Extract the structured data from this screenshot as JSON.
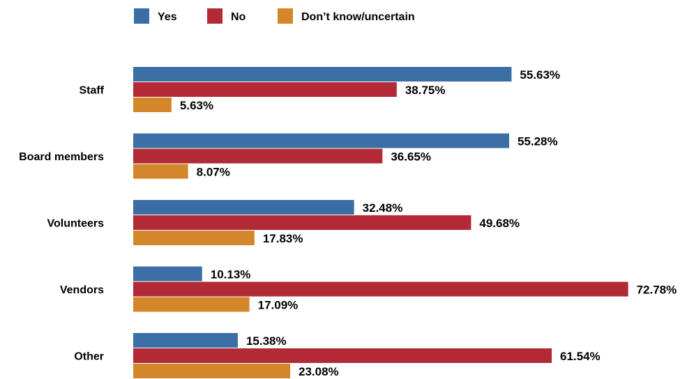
{
  "chart_data": {
    "type": "bar",
    "orientation": "horizontal",
    "categories": [
      "Staff",
      "Board members",
      "Volunteers",
      "Vendors",
      "Other"
    ],
    "series": [
      {
        "name": "Yes",
        "color": "#3a6ea5",
        "values": [
          55.63,
          55.28,
          32.48,
          10.13,
          15.38
        ]
      },
      {
        "name": "No",
        "color": "#b22a35",
        "values": [
          38.75,
          36.65,
          49.68,
          72.78,
          61.54
        ]
      },
      {
        "name": "Don’t know/uncertain",
        "color": "#d4872a",
        "values": [
          5.63,
          8.07,
          17.83,
          17.09,
          23.08
        ]
      }
    ],
    "data_labels": [
      [
        "55.63%",
        "38.75%",
        "5.63%"
      ],
      [
        "55.28%",
        "36.65%",
        "8.07%"
      ],
      [
        "32.48%",
        "49.68%",
        "17.83%"
      ],
      [
        "10.13%",
        "72.78%",
        "17.09%"
      ],
      [
        "15.38%",
        "61.54%",
        "23.08%"
      ]
    ],
    "xlim": [
      0,
      100
    ],
    "grid": false,
    "legend_position": "top"
  }
}
